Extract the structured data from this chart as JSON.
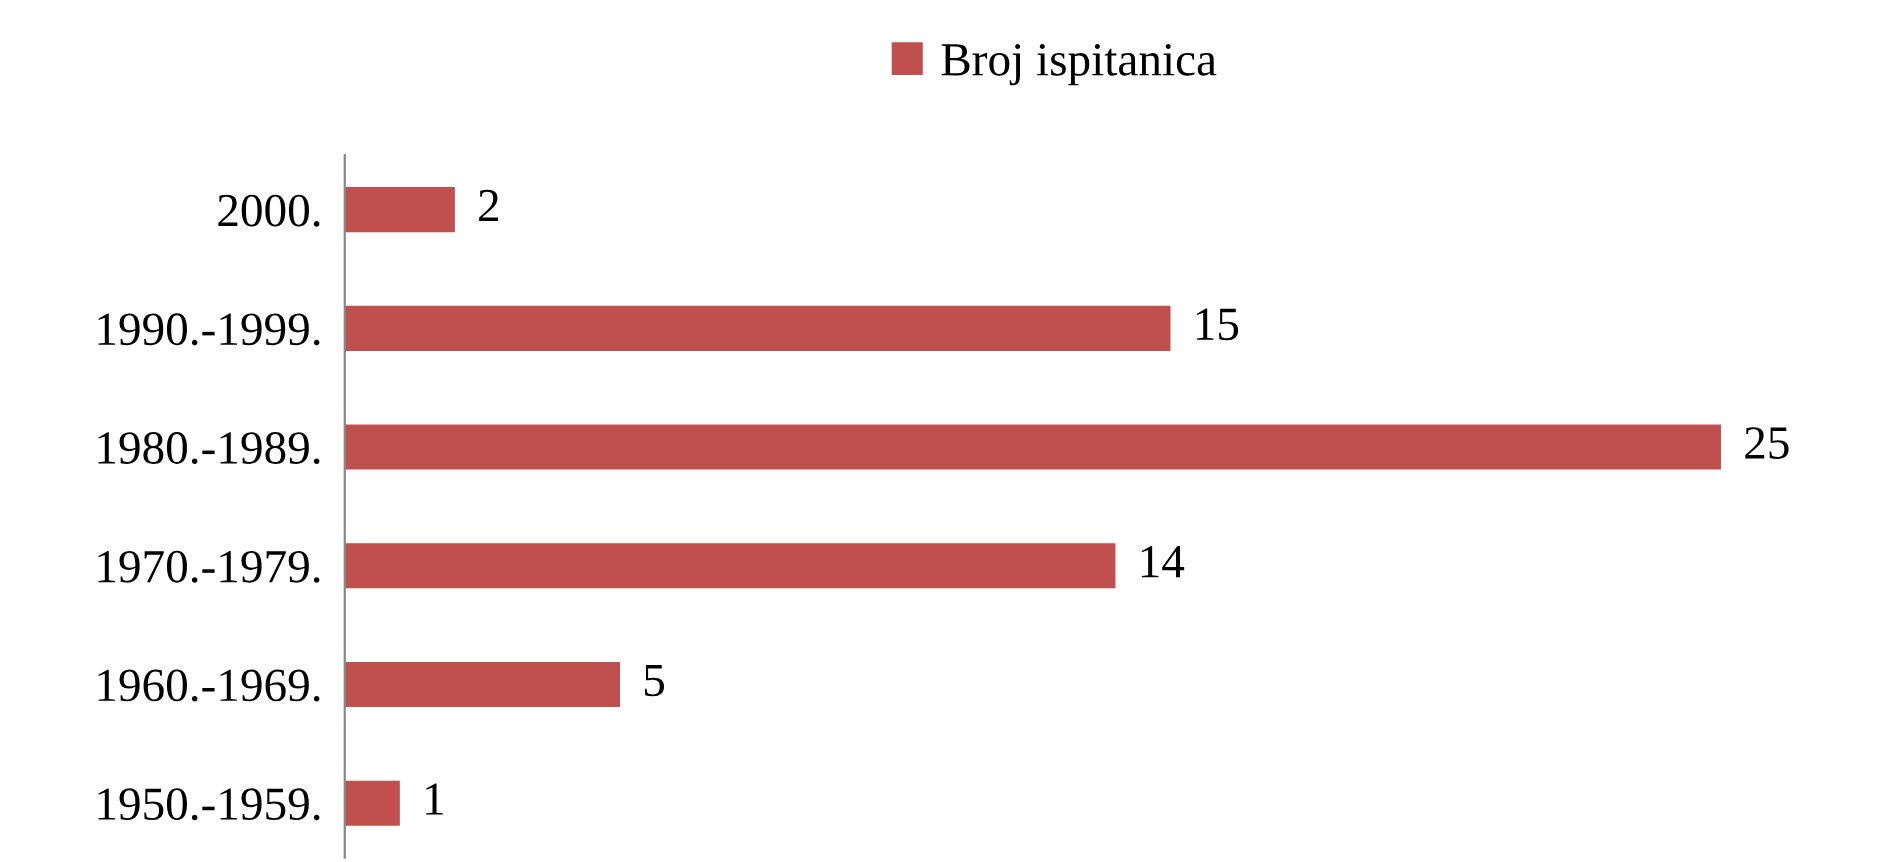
{
  "chart_data": {
    "type": "bar",
    "orientation": "horizontal",
    "categories": [
      "2000.",
      "1990.-1999.",
      "1980.-1989.",
      "1970.-1979.",
      "1960.-1969.",
      "1950.-1959."
    ],
    "series": [
      {
        "name": "Broj ispitanica",
        "color": "#c0504d",
        "values": [
          2,
          15,
          25,
          14,
          5,
          1
        ]
      }
    ],
    "data_labels": true,
    "legend": "top",
    "grid": false
  }
}
